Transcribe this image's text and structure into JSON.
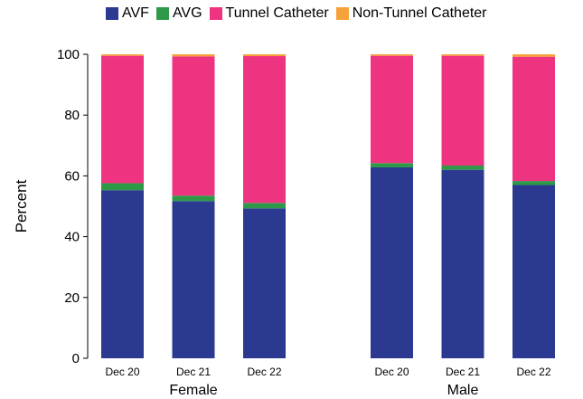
{
  "chart_data": {
    "type": "bar",
    "stacked": true,
    "ylabel": "Percent",
    "ylim": [
      0,
      100
    ],
    "yticks": [
      0,
      20,
      40,
      60,
      80,
      100
    ],
    "legend_position": "top",
    "groups": [
      {
        "label": "Female",
        "categories": [
          "Dec 20",
          "Dec 21",
          "Dec 22"
        ]
      },
      {
        "label": "Male",
        "categories": [
          "Dec 20",
          "Dec 21",
          "Dec 22"
        ]
      }
    ],
    "series": [
      {
        "name": "AVF",
        "color": "#2b3990",
        "values": [
          55.3,
          51.7,
          49.3,
          62.8,
          62.0,
          57.0
        ]
      },
      {
        "name": "AVG",
        "color": "#2e9a48",
        "values": [
          2.3,
          1.8,
          1.8,
          1.4,
          1.4,
          1.3
        ]
      },
      {
        "name": "Tunnel Catheter",
        "color": "#ee3480",
        "values": [
          41.9,
          45.8,
          48.3,
          35.3,
          36.1,
          40.9
        ]
      },
      {
        "name": "Non-Tunnel Catheter",
        "color": "#f7a13a",
        "values": [
          0.5,
          0.7,
          0.6,
          0.5,
          0.5,
          0.8
        ]
      }
    ]
  }
}
